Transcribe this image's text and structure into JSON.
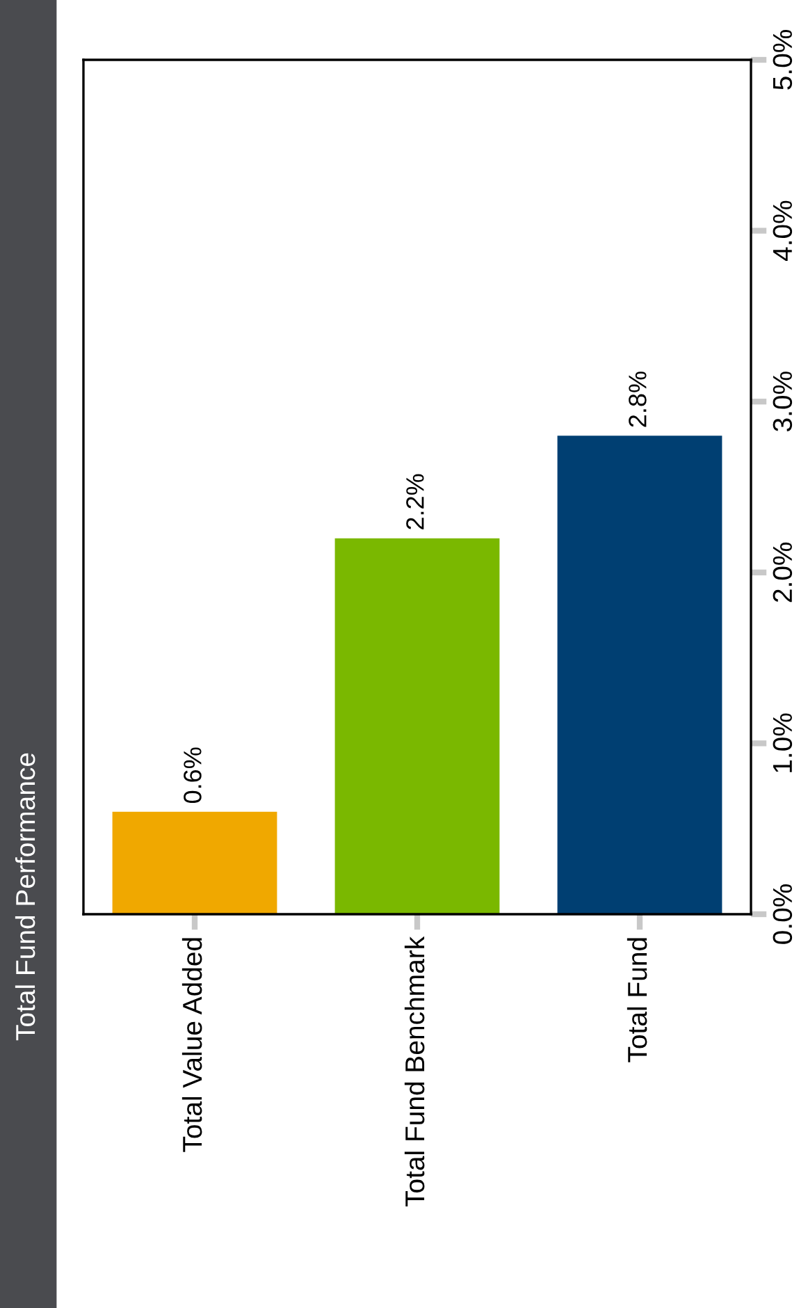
{
  "chart_data": {
    "type": "bar",
    "title": "Total Fund Performance",
    "categories": [
      "Total Value Added",
      "Total Fund Benchmark",
      "Total Fund"
    ],
    "values": [
      0.6,
      2.2,
      2.8
    ],
    "colors": [
      "#f0a800",
      "#7ab800",
      "#003f72"
    ],
    "value_labels": [
      "0.6%",
      "2.2%",
      "2.8%"
    ],
    "ylim": [
      0,
      5
    ],
    "yticks": [
      {
        "value": 0,
        "label": "0.0%"
      },
      {
        "value": 1,
        "label": "1.0%"
      },
      {
        "value": 2,
        "label": "2.0%"
      },
      {
        "value": 3,
        "label": "3.0%"
      },
      {
        "value": 4,
        "label": "4.0%"
      },
      {
        "value": 5,
        "label": "5.0%"
      }
    ],
    "grid": false,
    "legend": false
  }
}
